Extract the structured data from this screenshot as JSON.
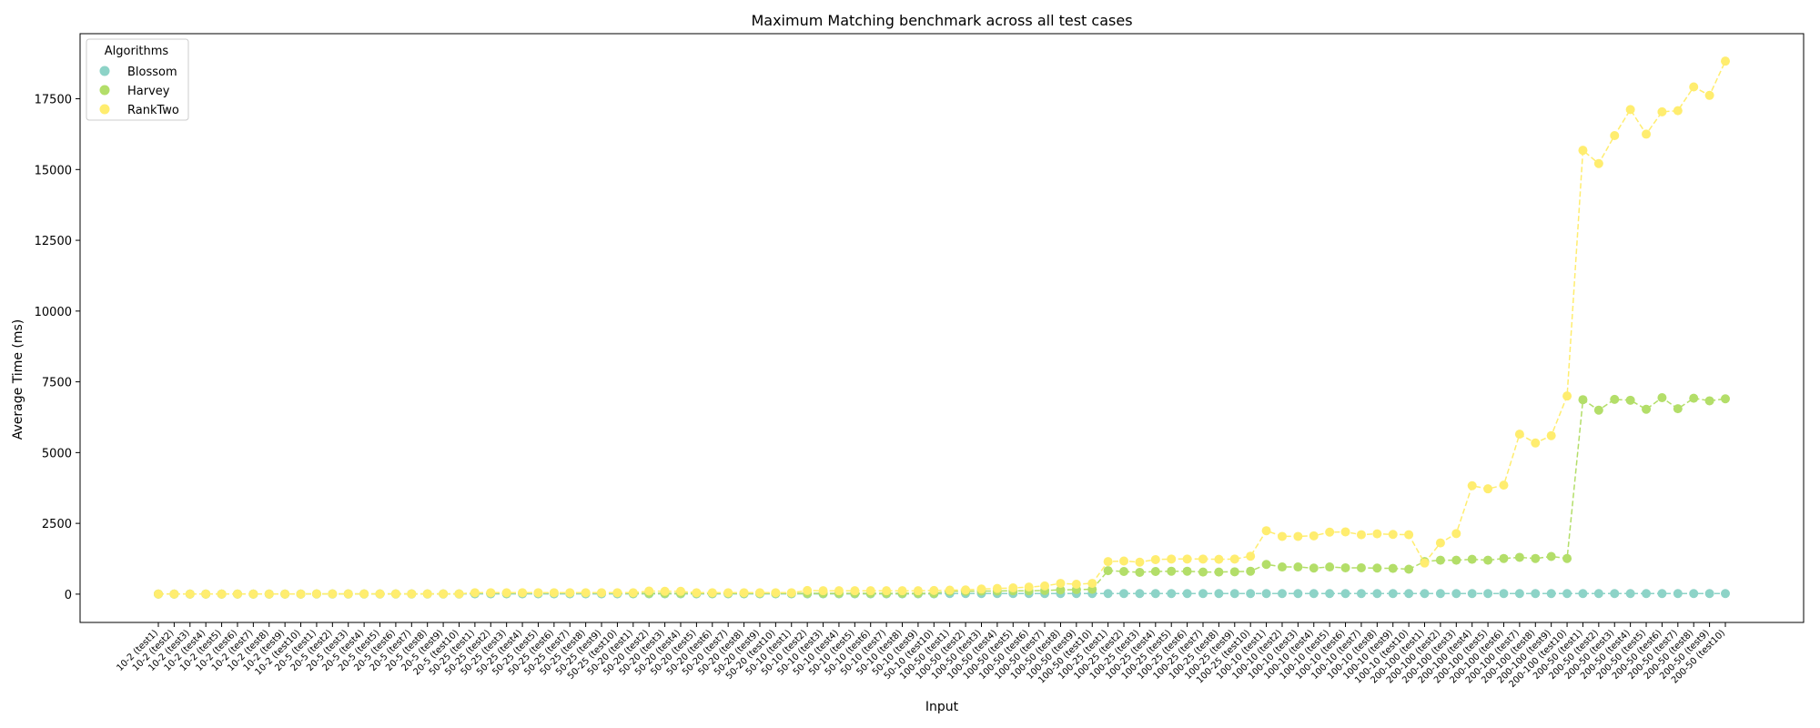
{
  "chart_data": {
    "type": "line",
    "title": "Maximum Matching benchmark across all test cases",
    "xlabel": "Input",
    "ylabel": "Average Time (ms)",
    "ylim": [
      -1000,
      19800
    ],
    "yticks": [
      0,
      2500,
      5000,
      7500,
      10000,
      12500,
      15000,
      17500
    ],
    "grid": false,
    "legend": {
      "title": "Algorithms",
      "position": "top-left"
    },
    "categories": [
      "10-2 (test1)",
      "10-2 (test2)",
      "10-2 (test3)",
      "10-2 (test4)",
      "10-2 (test5)",
      "10-2 (test6)",
      "10-2 (test7)",
      "10-2 (test8)",
      "10-2 (test9)",
      "10-2 (test10)",
      "20-5 (test1)",
      "20-5 (test2)",
      "20-5 (test3)",
      "20-5 (test4)",
      "20-5 (test5)",
      "20-5 (test6)",
      "20-5 (test7)",
      "20-5 (test8)",
      "20-5 (test9)",
      "20-5 (test10)",
      "50-25 (test1)",
      "50-25 (test2)",
      "50-25 (test3)",
      "50-25 (test4)",
      "50-25 (test5)",
      "50-25 (test6)",
      "50-25 (test7)",
      "50-25 (test8)",
      "50-25 (test9)",
      "50-25 (test10)",
      "50-20 (test1)",
      "50-20 (test2)",
      "50-20 (test3)",
      "50-20 (test4)",
      "50-20 (test5)",
      "50-20 (test6)",
      "50-20 (test7)",
      "50-20 (test8)",
      "50-20 (test9)",
      "50-20 (test10)",
      "50-10 (test1)",
      "50-10 (test2)",
      "50-10 (test3)",
      "50-10 (test4)",
      "50-10 (test5)",
      "50-10 (test6)",
      "50-10 (test7)",
      "50-10 (test8)",
      "50-10 (test9)",
      "50-10 (test10)",
      "100-50 (test1)",
      "100-50 (test2)",
      "100-50 (test3)",
      "100-50 (test4)",
      "100-50 (test5)",
      "100-50 (test6)",
      "100-50 (test7)",
      "100-50 (test8)",
      "100-50 (test9)",
      "100-50 (test10)",
      "100-25 (test1)",
      "100-25 (test2)",
      "100-25 (test3)",
      "100-25 (test4)",
      "100-25 (test5)",
      "100-25 (test6)",
      "100-25 (test7)",
      "100-25 (test8)",
      "100-25 (test9)",
      "100-25 (test10)",
      "100-10 (test1)",
      "100-10 (test2)",
      "100-10 (test3)",
      "100-10 (test4)",
      "100-10 (test5)",
      "100-10 (test6)",
      "100-10 (test7)",
      "100-10 (test8)",
      "100-10 (test9)",
      "100-10 (test10)",
      "200-100 (test1)",
      "200-100 (test2)",
      "200-100 (test3)",
      "200-100 (test4)",
      "200-100 (test5)",
      "200-100 (test6)",
      "200-100 (test7)",
      "200-100 (test8)",
      "200-100 (test9)",
      "200-100 (test10)",
      "200-50 (test1)",
      "200-50 (test2)",
      "200-50 (test3)",
      "200-50 (test4)",
      "200-50 (test5)",
      "200-50 (test6)",
      "200-50 (test7)",
      "200-50 (test8)",
      "200-50 (test9)",
      "200-50 (test10)"
    ],
    "series": [
      {
        "name": "Blossom",
        "color": "#8dd3c7",
        "values": [
          2,
          2,
          2,
          2,
          2,
          2,
          2,
          2,
          2,
          2,
          5,
          5,
          5,
          5,
          5,
          5,
          5,
          5,
          5,
          5,
          10,
          10,
          10,
          10,
          10,
          10,
          10,
          10,
          10,
          10,
          10,
          10,
          10,
          10,
          10,
          10,
          10,
          10,
          10,
          10,
          10,
          10,
          10,
          10,
          10,
          10,
          10,
          10,
          10,
          10,
          20,
          20,
          20,
          20,
          20,
          20,
          20,
          20,
          20,
          20,
          20,
          20,
          20,
          20,
          20,
          20,
          20,
          20,
          20,
          20,
          20,
          20,
          20,
          20,
          20,
          20,
          20,
          20,
          20,
          20,
          20,
          20,
          20,
          20,
          20,
          20,
          20,
          20,
          20,
          20,
          20,
          20,
          20,
          20,
          20,
          20,
          20,
          20,
          20,
          20
        ]
      },
      {
        "name": "Harvey",
        "color": "#b3de69",
        "values": [
          5,
          5,
          5,
          5,
          5,
          5,
          5,
          5,
          5,
          5,
          10,
          10,
          10,
          10,
          10,
          10,
          10,
          10,
          10,
          10,
          40,
          40,
          35,
          40,
          40,
          40,
          40,
          40,
          40,
          40,
          30,
          30,
          30,
          30,
          30,
          30,
          30,
          30,
          30,
          30,
          30,
          30,
          30,
          30,
          30,
          30,
          30,
          30,
          30,
          30,
          100,
          100,
          110,
          110,
          120,
          120,
          130,
          150,
          160,
          170,
          830,
          800,
          770,
          800,
          810,
          810,
          780,
          780,
          790,
          810,
          1050,
          960,
          960,
          920,
          960,
          930,
          930,
          920,
          910,
          880,
          1150,
          1200,
          1200,
          1230,
          1200,
          1260,
          1300,
          1260,
          1330,
          1260,
          6870,
          6500,
          6880,
          6850,
          6530,
          6940,
          6550,
          6920,
          6830,
          6900
        ]
      },
      {
        "name": "RankTwo",
        "color": "#ffed6f",
        "values": [
          5,
          5,
          5,
          5,
          5,
          5,
          5,
          5,
          5,
          5,
          10,
          10,
          10,
          10,
          10,
          10,
          10,
          10,
          10,
          10,
          50,
          50,
          50,
          50,
          50,
          50,
          50,
          50,
          50,
          50,
          50,
          110,
          100,
          100,
          50,
          50,
          50,
          50,
          50,
          50,
          50,
          130,
          120,
          120,
          120,
          120,
          120,
          120,
          120,
          130,
          140,
          150,
          180,
          200,
          220,
          250,
          290,
          380,
          350,
          380,
          1150,
          1170,
          1130,
          1220,
          1240,
          1240,
          1240,
          1230,
          1240,
          1340,
          2240,
          2040,
          2040,
          2060,
          2190,
          2200,
          2100,
          2130,
          2110,
          2100,
          1100,
          1810,
          2140,
          3830,
          3720,
          3850,
          5650,
          5340,
          5600,
          7000,
          15680,
          15210,
          16200,
          17120,
          16250,
          17040,
          17080,
          17920,
          17620,
          18830
        ]
      }
    ]
  }
}
